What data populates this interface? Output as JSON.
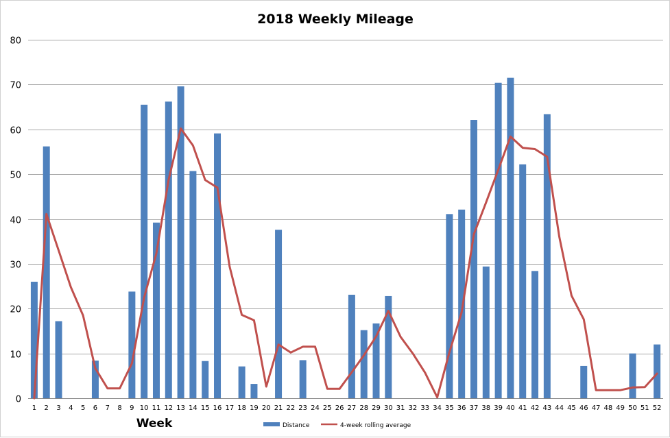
{
  "chart_data": {
    "type": "bar",
    "title": "2018 Weekly Mileage",
    "xlabel": "Week",
    "ylabel": "",
    "ylim": [
      0,
      80
    ],
    "yticks": [
      0,
      10,
      20,
      30,
      40,
      50,
      60,
      70,
      80
    ],
    "grid": true,
    "legend_position": "bottom-center",
    "categories": [
      "1",
      "2",
      "3",
      "4",
      "5",
      "6",
      "7",
      "8",
      "9",
      "10",
      "11",
      "12",
      "13",
      "14",
      "15",
      "16",
      "17",
      "18",
      "19",
      "20",
      "21",
      "22",
      "23",
      "24",
      "25",
      "26",
      "27",
      "28",
      "29",
      "30",
      "31",
      "32",
      "33",
      "34",
      "35",
      "36",
      "37",
      "38",
      "39",
      "40",
      "41",
      "42",
      "43",
      "44",
      "45",
      "46",
      "47",
      "48",
      "49",
      "50",
      "51",
      "52"
    ],
    "series": [
      {
        "name": "Distance",
        "type": "bar",
        "color": "#4f81bd",
        "values": [
          26.0,
          56.2,
          17.2,
          0,
          0,
          8.4,
          0,
          0,
          23.8,
          65.5,
          39.2,
          66.2,
          69.6,
          50.7,
          8.3,
          59.1,
          0,
          7.1,
          3.2,
          0,
          37.6,
          0,
          8.5,
          0,
          0,
          0,
          23.1,
          15.2,
          16.7,
          22.8,
          0,
          0,
          0,
          0,
          41.1,
          42.1,
          62.1,
          29.4,
          70.4,
          71.5,
          52.2,
          28.4,
          63.4,
          0,
          0,
          7.2,
          0,
          0,
          0,
          10.0,
          0,
          12.0
        ]
      },
      {
        "name": "4-week rolling average",
        "type": "line",
        "color": "#c0504d",
        "values": [
          0,
          41.1,
          33.0,
          24.8,
          18.5,
          6.7,
          2.2,
          2.2,
          7.8,
          22.5,
          32.3,
          48.7,
          60.2,
          56.4,
          48.7,
          47.0,
          29.4,
          18.6,
          17.4,
          2.6,
          12.0,
          10.2,
          11.5,
          11.5,
          2.1,
          2.1,
          5.8,
          9.6,
          13.8,
          19.5,
          13.7,
          10.0,
          5.7,
          0.2,
          10.3,
          19.2,
          36.6,
          43.7,
          51.0,
          58.4,
          55.9,
          55.6,
          53.9,
          36.0,
          22.9,
          17.6,
          1.8,
          1.8,
          1.8,
          2.4,
          2.5,
          5.5
        ]
      }
    ]
  }
}
